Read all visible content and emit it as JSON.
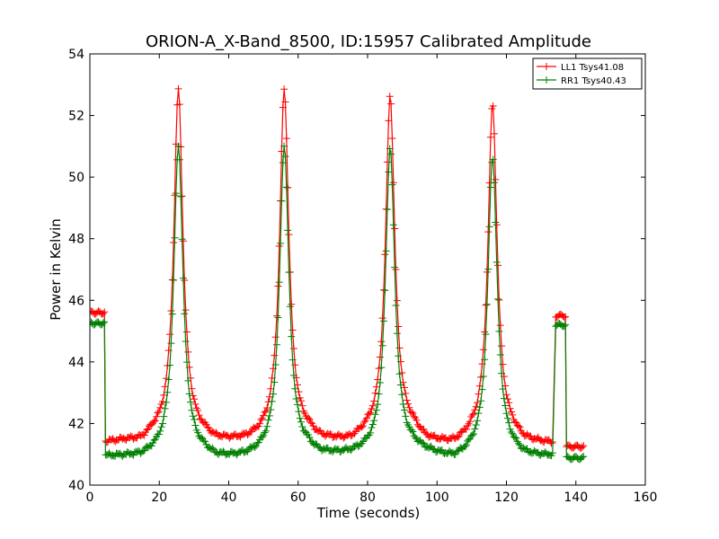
{
  "chart_data": {
    "type": "line",
    "title": "ORION-A_X-Band_8500, ID:15957 Calibrated Amplitude",
    "xlabel": "Time (seconds)",
    "ylabel": "Power in Kelvin",
    "xlim": [
      0,
      160
    ],
    "ylim": [
      40,
      54
    ],
    "xticks": [
      0,
      20,
      40,
      60,
      80,
      100,
      120,
      140,
      160
    ],
    "yticks": [
      40,
      42,
      44,
      46,
      48,
      50,
      52,
      54
    ],
    "grid": false,
    "legend_placement": "top-right",
    "marker": "plus",
    "series": [
      {
        "name": "LL1 Tsys41.08",
        "color": "#ff0000",
        "baseline": [
          [
            4.5,
            41.35
          ],
          [
            10,
            41.38
          ],
          [
            15,
            41.33
          ],
          [
            18,
            41.5
          ],
          [
            33,
            41.45
          ],
          [
            36,
            41.32
          ],
          [
            45,
            41.33
          ],
          [
            50,
            41.4
          ],
          [
            63,
            41.5
          ],
          [
            66,
            41.35
          ],
          [
            75,
            41.3
          ],
          [
            80,
            41.5
          ],
          [
            93,
            41.6
          ],
          [
            97,
            41.3
          ],
          [
            105,
            41.2
          ],
          [
            110,
            41.4
          ],
          [
            122,
            41.45
          ],
          [
            125,
            41.3
          ],
          [
            133.5,
            41.3
          ]
        ],
        "peaks": [
          {
            "center": 25.5,
            "height": 52.8
          },
          {
            "center": 56.0,
            "height": 52.8
          },
          {
            "center": 86.5,
            "height": 52.6
          },
          {
            "center": 116.0,
            "height": 52.35
          }
        ],
        "segments": [
          {
            "start": 0,
            "end": 4.2,
            "level": 45.6
          },
          {
            "start": 134.2,
            "end": 137.0,
            "level": 45.5
          },
          {
            "start": 137.3,
            "end": 142.5,
            "level": 41.25
          }
        ]
      },
      {
        "name": "RR1 Tsys40.43",
        "color": "#008000",
        "baseline": [
          [
            4.5,
            40.9
          ],
          [
            10,
            40.88
          ],
          [
            15,
            40.85
          ],
          [
            18,
            40.9
          ],
          [
            33,
            40.9
          ],
          [
            36,
            40.78
          ],
          [
            45,
            40.82
          ],
          [
            50,
            40.9
          ],
          [
            63,
            41.0
          ],
          [
            66,
            40.88
          ],
          [
            75,
            40.9
          ],
          [
            80,
            40.95
          ],
          [
            93,
            41.05
          ],
          [
            97,
            40.95
          ],
          [
            105,
            40.75
          ],
          [
            110,
            40.9
          ],
          [
            122,
            40.95
          ],
          [
            125,
            40.85
          ],
          [
            133.5,
            40.9
          ]
        ],
        "peaks": [
          {
            "center": 25.5,
            "height": 51.0
          },
          {
            "center": 56.0,
            "height": 51.0
          },
          {
            "center": 86.5,
            "height": 50.9
          },
          {
            "center": 116.0,
            "height": 50.65
          }
        ],
        "segments": [
          {
            "start": 0,
            "end": 4.2,
            "level": 45.25
          },
          {
            "start": 134.2,
            "end": 137.0,
            "level": 45.2
          },
          {
            "start": 137.3,
            "end": 142.5,
            "level": 40.88
          }
        ]
      }
    ]
  }
}
